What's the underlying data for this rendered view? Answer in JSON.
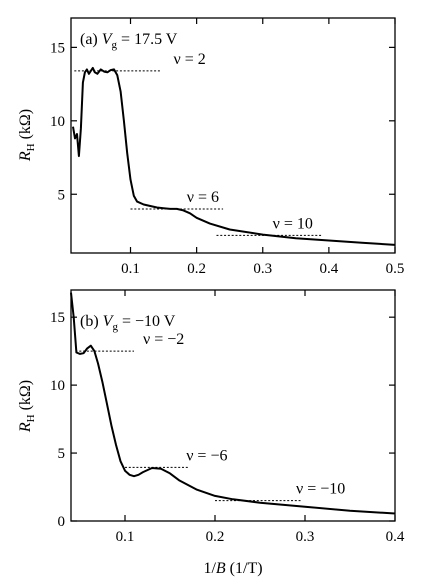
{
  "chart_data": [
    {
      "type": "line",
      "panel_label": "(a)",
      "gate_label": "Vg = 17.5 V",
      "gate_symbol": "V",
      "gate_sub": "g",
      "gate_value": " = 17.5 V",
      "ylabel_main": "R",
      "ylabel_sub": "H",
      "ylabel_unit": " (kΩ)",
      "xlabel": "",
      "xlim": [
        0.01,
        0.5
      ],
      "ylim": [
        1,
        17
      ],
      "xticks": [
        0.1,
        0.2,
        0.3,
        0.4,
        0.5
      ],
      "xtick_labels": [
        "0.1",
        "0.2",
        "0.3",
        "0.4",
        "0.5"
      ],
      "yticks": [
        5,
        10,
        15
      ],
      "ytick_labels": [
        "5",
        "10",
        "15"
      ],
      "grid": false,
      "series": [
        {
          "values_xy": [
            [
              0.013,
              9.6
            ],
            [
              0.016,
              8.8
            ],
            [
              0.019,
              9.1
            ],
            [
              0.022,
              7.6
            ],
            [
              0.025,
              9.5
            ],
            [
              0.028,
              12.6
            ],
            [
              0.031,
              13.3
            ],
            [
              0.034,
              13.5
            ],
            [
              0.037,
              13.2
            ],
            [
              0.04,
              13.4
            ],
            [
              0.043,
              13.6
            ],
            [
              0.046,
              13.3
            ],
            [
              0.05,
              13.2
            ],
            [
              0.055,
              13.5
            ],
            [
              0.06,
              13.35
            ],
            [
              0.065,
              13.3
            ],
            [
              0.07,
              13.45
            ],
            [
              0.075,
              13.5
            ],
            [
              0.08,
              13.1
            ],
            [
              0.085,
              12.0
            ],
            [
              0.09,
              10.0
            ],
            [
              0.095,
              7.8
            ],
            [
              0.1,
              6.0
            ],
            [
              0.105,
              4.9
            ],
            [
              0.11,
              4.5
            ],
            [
              0.12,
              4.3
            ],
            [
              0.13,
              4.2
            ],
            [
              0.14,
              4.1
            ],
            [
              0.15,
              4.05
            ],
            [
              0.16,
              4.0
            ],
            [
              0.17,
              4.0
            ],
            [
              0.18,
              3.9
            ],
            [
              0.19,
              3.7
            ],
            [
              0.2,
              3.4
            ],
            [
              0.22,
              3.0
            ],
            [
              0.25,
              2.6
            ],
            [
              0.3,
              2.25
            ],
            [
              0.35,
              2.0
            ],
            [
              0.4,
              1.85
            ],
            [
              0.45,
              1.7
            ],
            [
              0.5,
              1.55
            ]
          ]
        }
      ],
      "plateaus": [
        {
          "label": "ν = 2",
          "y": 13.4,
          "x_from": 0.015,
          "x_to": 0.145,
          "label_x": 0.165
        },
        {
          "label": "ν = 6",
          "y": 4.0,
          "x_from": 0.1,
          "x_to": 0.24,
          "label_x": 0.185
        },
        {
          "label": "ν = 10",
          "y": 2.2,
          "x_from": 0.23,
          "x_to": 0.39,
          "label_x": 0.315
        }
      ]
    },
    {
      "type": "line",
      "panel_label": "(b)",
      "gate_label": "Vg = −10 V",
      "gate_symbol": "V",
      "gate_sub": "g",
      "gate_value": " = −10 V",
      "ylabel_main": "R",
      "ylabel_sub": "H",
      "ylabel_unit": " (kΩ)",
      "xlabel_main": "1/",
      "xlabel_italic": "B",
      "xlabel_unit": " (1/T)",
      "xlim": [
        0.04,
        0.4
      ],
      "ylim": [
        0,
        17
      ],
      "xticks": [
        0.1,
        0.2,
        0.3,
        0.4
      ],
      "xtick_labels": [
        "0.1",
        "0.2",
        "0.3",
        "0.4"
      ],
      "yticks": [
        0,
        5,
        10,
        15
      ],
      "ytick_labels": [
        "0",
        "5",
        "10",
        "15"
      ],
      "grid": false,
      "series": [
        {
          "values_xy": [
            [
              0.04,
              16.8
            ],
            [
              0.043,
              15.0
            ],
            [
              0.046,
              12.4
            ],
            [
              0.05,
              12.3
            ],
            [
              0.054,
              12.35
            ],
            [
              0.058,
              12.7
            ],
            [
              0.062,
              12.9
            ],
            [
              0.066,
              12.5
            ],
            [
              0.07,
              11.6
            ],
            [
              0.075,
              10.2
            ],
            [
              0.08,
              8.6
            ],
            [
              0.085,
              7.0
            ],
            [
              0.09,
              5.6
            ],
            [
              0.095,
              4.4
            ],
            [
              0.1,
              3.7
            ],
            [
              0.105,
              3.4
            ],
            [
              0.11,
              3.3
            ],
            [
              0.115,
              3.4
            ],
            [
              0.12,
              3.6
            ],
            [
              0.13,
              3.9
            ],
            [
              0.14,
              3.85
            ],
            [
              0.15,
              3.5
            ],
            [
              0.16,
              3.0
            ],
            [
              0.18,
              2.3
            ],
            [
              0.2,
              1.85
            ],
            [
              0.22,
              1.6
            ],
            [
              0.25,
              1.35
            ],
            [
              0.3,
              1.05
            ],
            [
              0.35,
              0.75
            ],
            [
              0.4,
              0.55
            ]
          ]
        }
      ],
      "plateaus": [
        {
          "label": "ν = −2",
          "y": 12.5,
          "x_from": 0.045,
          "x_to": 0.11,
          "label_x": 0.12
        },
        {
          "label": "ν = −6",
          "y": 3.95,
          "x_from": 0.1,
          "x_to": 0.17,
          "label_x": 0.168
        },
        {
          "label": "ν = −10",
          "y": 1.5,
          "x_from": 0.2,
          "x_to": 0.295,
          "label_x": 0.29
        }
      ]
    }
  ]
}
